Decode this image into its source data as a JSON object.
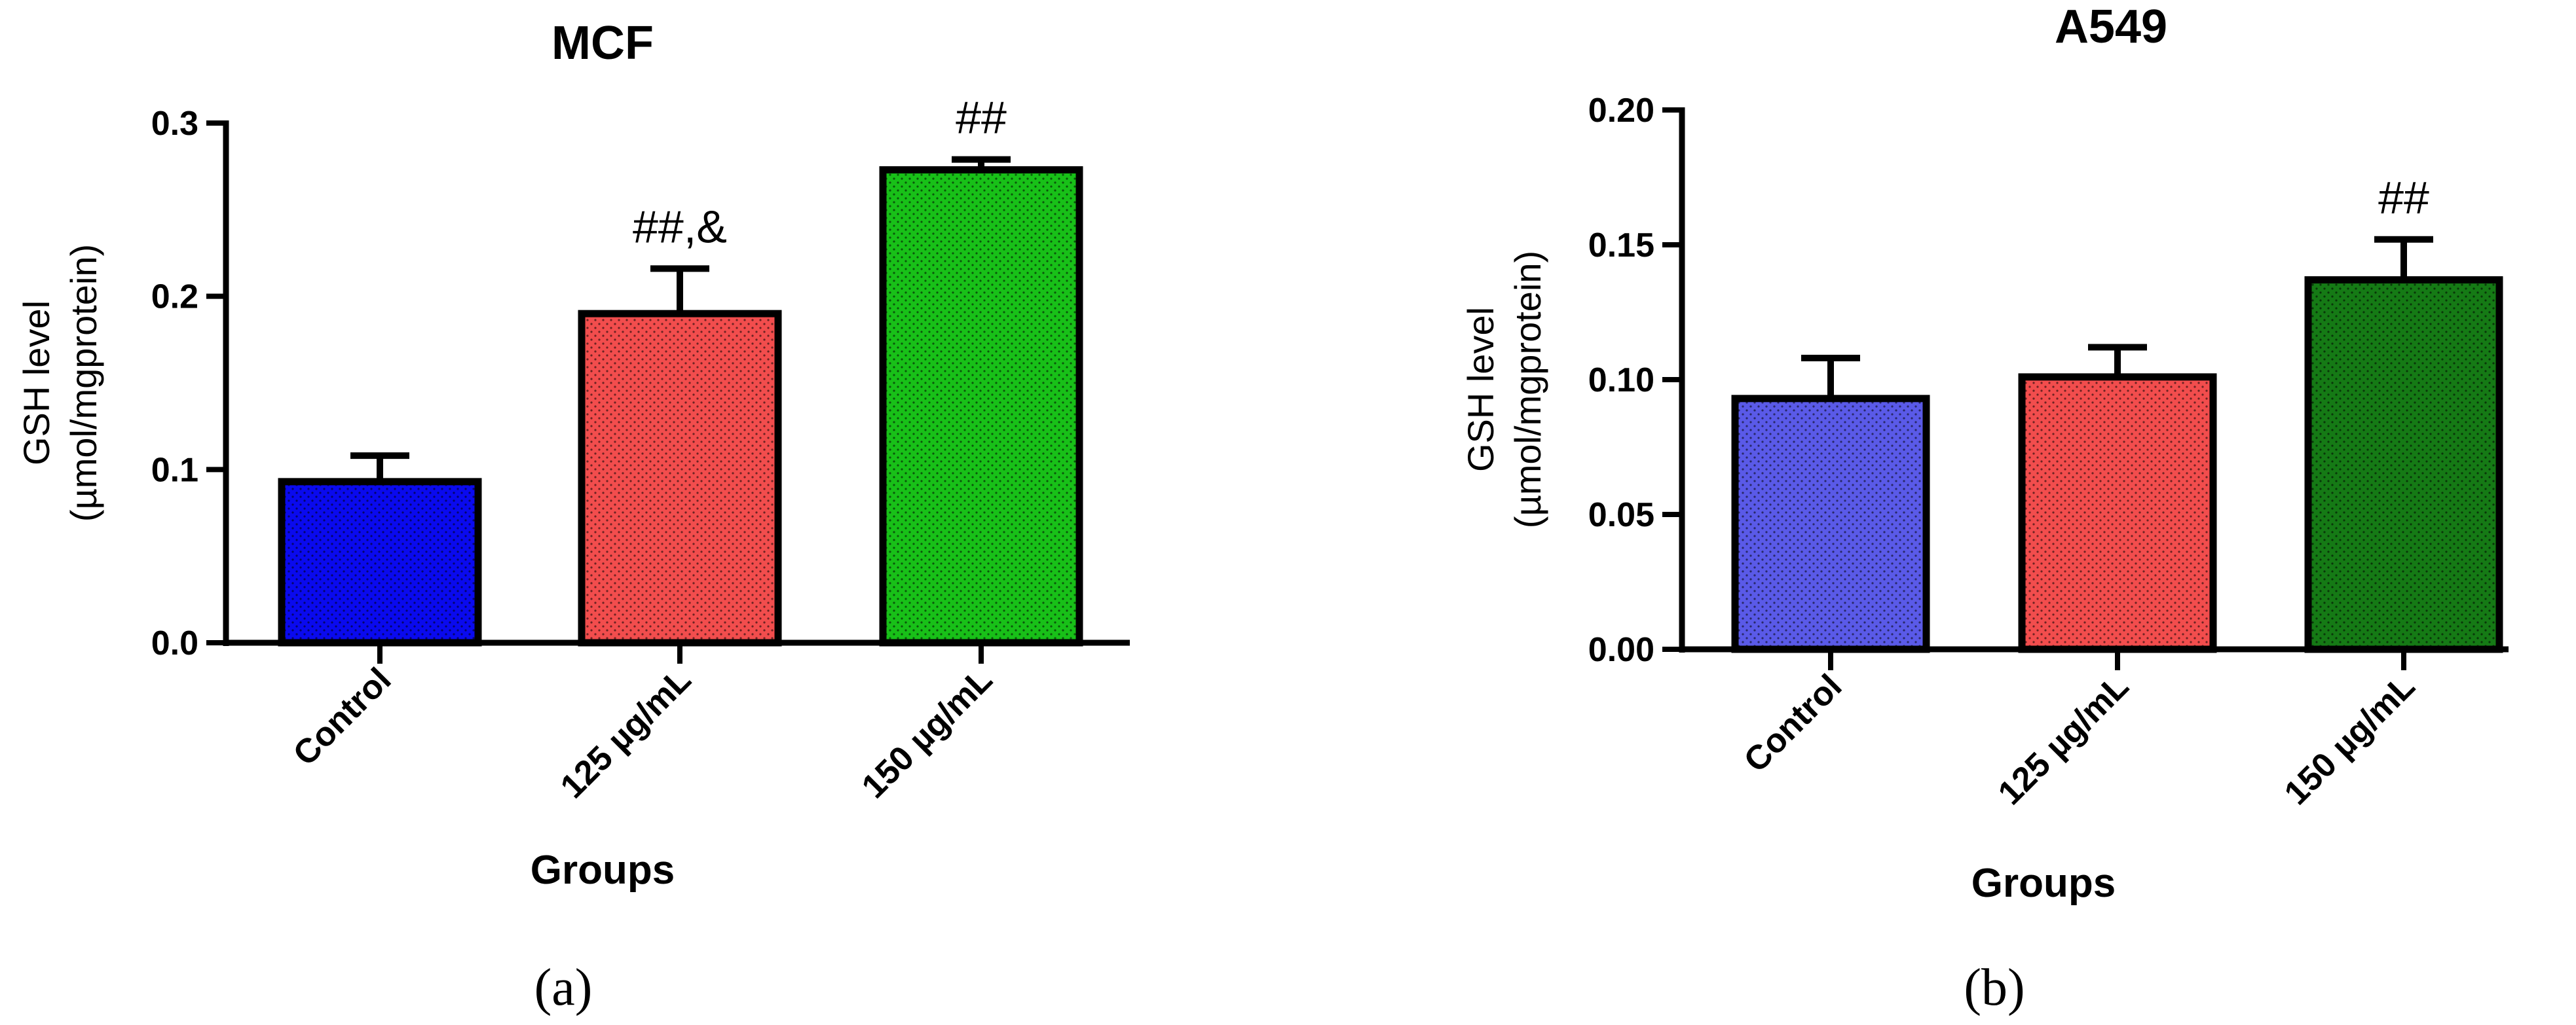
{
  "chart_data": [
    {
      "panel_label": "(a)",
      "type": "bar",
      "title": "MCF",
      "xlabel": "Groups",
      "ylabel": [
        "GSH level",
        "(µmol/mgprotein)"
      ],
      "ylim": [
        0,
        0.3
      ],
      "yticks": [
        "0.0",
        "0.1",
        "0.2",
        "0.3"
      ],
      "categories": [
        "Control",
        "125 µg/mL",
        "150 µg/mL"
      ],
      "values": [
        0.093,
        0.19,
        0.273
      ],
      "errors": [
        0.015,
        0.026,
        0.006
      ],
      "colors": [
        "#0a0aee",
        "#f24d4d",
        "#18c018"
      ],
      "annotations": [
        "",
        "##,&",
        "##"
      ],
      "grid": false
    },
    {
      "panel_label": "(b)",
      "type": "bar",
      "title": "A549",
      "xlabel": "Groups",
      "ylabel": [
        "GSH level",
        "(µmol/mgprotein)"
      ],
      "ylim": [
        0,
        0.2
      ],
      "yticks": [
        "0.00",
        "0.05",
        "0.10",
        "0.15",
        "0.20"
      ],
      "categories": [
        "Control",
        "125 µg/mL",
        "150 µg/mL"
      ],
      "values": [
        0.093,
        0.101,
        0.137
      ],
      "errors": [
        0.015,
        0.011,
        0.015
      ],
      "colors": [
        "#5a5ae8",
        "#f24d4d",
        "#157a15"
      ],
      "annotations": [
        "",
        "",
        "##"
      ],
      "grid": false
    }
  ]
}
